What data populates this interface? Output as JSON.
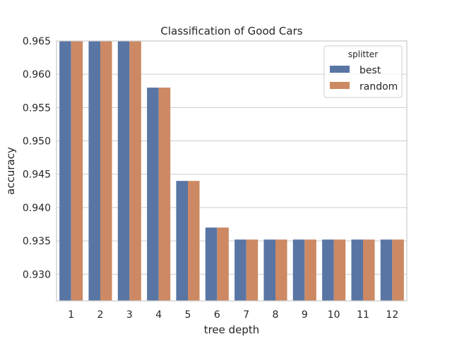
{
  "chart_data": {
    "type": "bar",
    "title": "Classification of Good Cars",
    "xlabel": "tree depth",
    "ylabel": "accuracy",
    "categories": [
      "1",
      "2",
      "3",
      "4",
      "5",
      "6",
      "7",
      "8",
      "9",
      "10",
      "11",
      "12"
    ],
    "series": [
      {
        "name": "best",
        "color": "#5875a4",
        "values": [
          0.965,
          0.965,
          0.965,
          0.958,
          0.944,
          0.937,
          0.9352,
          0.9352,
          0.9352,
          0.9352,
          0.9352,
          0.9352
        ]
      },
      {
        "name": "random",
        "color": "#cc8963",
        "values": [
          0.965,
          0.965,
          0.965,
          0.958,
          0.944,
          0.937,
          0.9352,
          0.9352,
          0.9352,
          0.9352,
          0.9352,
          0.9352
        ]
      }
    ],
    "ylim": [
      0.926,
      0.965
    ],
    "yticks": [
      "0.930",
      "0.935",
      "0.940",
      "0.945",
      "0.950",
      "0.955",
      "0.960",
      "0.965"
    ],
    "legend": {
      "title": "splitter",
      "placement": "top-right"
    },
    "grid": "horizontal",
    "colors": {
      "grid": "#cccccc",
      "axes_edge": "#cccccc",
      "text": "#262626"
    }
  }
}
